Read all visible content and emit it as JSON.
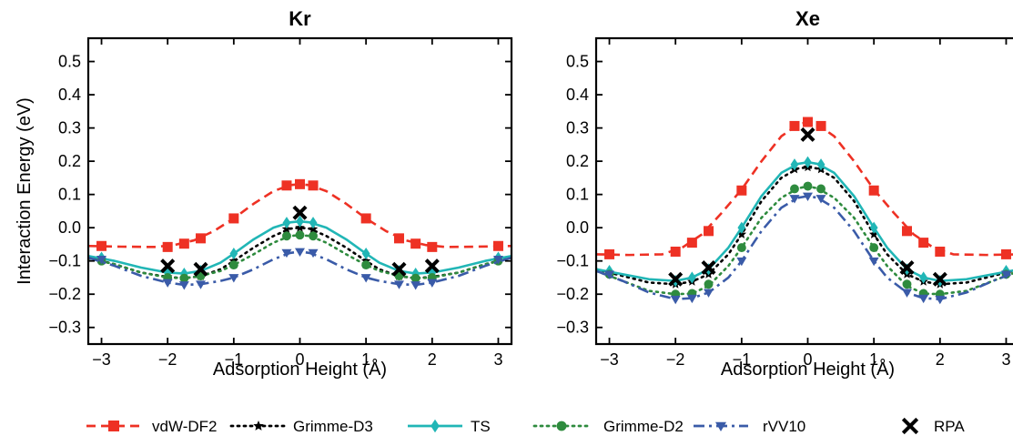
{
  "chart_data": [
    {
      "type": "line",
      "title": "Kr",
      "xlabel": "Adsorption Height (Å)",
      "ylabel": "Interaction Energy (eV)",
      "xlim": [
        -3.2,
        3.2
      ],
      "ylim": [
        -0.35,
        0.57
      ],
      "xticks": [
        "−3",
        "−2",
        "−1",
        "0",
        "1",
        "2",
        "3"
      ],
      "yticks": [
        "0.5",
        "0.4",
        "0.3",
        "0.2",
        "0.1",
        "0.0",
        "−0.1",
        "−0.2",
        "−0.3"
      ],
      "series": [
        {
          "name": "vdW-DF2",
          "curve": {
            "x": [
              -3.2,
              -2.7,
              -2.2,
              -1.9,
              -1.6,
              -1.3,
              -1.0,
              -0.7,
              -0.4,
              -0.15,
              0,
              0.15,
              0.4,
              0.7,
              1.0,
              1.3,
              1.6,
              1.9,
              2.2,
              2.7,
              3.2
            ],
            "y": [
              -0.055,
              -0.057,
              -0.058,
              -0.052,
              -0.038,
              -0.01,
              0.028,
              0.072,
              0.11,
              0.128,
              0.131,
              0.128,
              0.11,
              0.072,
              0.028,
              -0.01,
              -0.038,
              -0.052,
              -0.058,
              -0.057,
              -0.055
            ]
          },
          "points": {
            "x": [
              -3,
              -2,
              -1.75,
              -1.5,
              -1,
              -0.2,
              0,
              0.2,
              1,
              1.5,
              1.75,
              2,
              3
            ],
            "y": [
              -0.055,
              -0.058,
              -0.048,
              -0.032,
              0.028,
              0.127,
              0.131,
              0.127,
              0.028,
              -0.032,
              -0.048,
              -0.058,
              -0.055
            ]
          }
        },
        {
          "name": "Grimme-D3",
          "curve": {
            "x": [
              -3.2,
              -2.8,
              -2.4,
              -2.0,
              -1.75,
              -1.5,
              -1.2,
              -1.0,
              -0.7,
              -0.4,
              -0.15,
              0,
              0.15,
              0.4,
              0.7,
              1.0,
              1.2,
              1.5,
              1.75,
              2.0,
              2.4,
              2.8,
              3.2
            ],
            "y": [
              -0.09,
              -0.11,
              -0.135,
              -0.148,
              -0.152,
              -0.146,
              -0.125,
              -0.1,
              -0.06,
              -0.025,
              -0.003,
              0.0,
              -0.003,
              -0.025,
              -0.06,
              -0.1,
              -0.125,
              -0.146,
              -0.152,
              -0.148,
              -0.135,
              -0.11,
              -0.09
            ]
          },
          "points": {
            "x": [
              -3,
              -2,
              -1.75,
              -1.5,
              -1,
              -0.2,
              0,
              0.2,
              1,
              1.5,
              1.75,
              2,
              3
            ],
            "y": [
              -0.095,
              -0.148,
              -0.152,
              -0.146,
              -0.1,
              -0.004,
              0.0,
              -0.004,
              -0.1,
              -0.146,
              -0.152,
              -0.148,
              -0.095
            ]
          }
        },
        {
          "name": "TS",
          "curve": {
            "x": [
              -3.2,
              -2.8,
              -2.4,
              -2.0,
              -1.75,
              -1.5,
              -1.2,
              -1.0,
              -0.7,
              -0.4,
              -0.15,
              0,
              0.15,
              0.4,
              0.7,
              1.0,
              1.2,
              1.5,
              1.75,
              2.0,
              2.4,
              2.8,
              3.2
            ],
            "y": [
              -0.085,
              -0.1,
              -0.12,
              -0.135,
              -0.138,
              -0.13,
              -0.105,
              -0.078,
              -0.035,
              0.0,
              0.016,
              0.019,
              0.016,
              0.0,
              -0.035,
              -0.078,
              -0.105,
              -0.13,
              -0.138,
              -0.135,
              -0.12,
              -0.1,
              -0.085
            ]
          },
          "points": {
            "x": [
              -3,
              -2,
              -1.75,
              -1.5,
              -1,
              -0.2,
              0,
              0.2,
              1,
              1.5,
              1.75,
              2,
              3
            ],
            "y": [
              -0.09,
              -0.135,
              -0.138,
              -0.13,
              -0.078,
              0.015,
              0.019,
              0.015,
              -0.078,
              -0.13,
              -0.138,
              -0.135,
              -0.09
            ]
          }
        },
        {
          "name": "Grimme-D2",
          "curve": {
            "x": [
              -3.2,
              -2.8,
              -2.4,
              -2.0,
              -1.75,
              -1.5,
              -1.2,
              -1.0,
              -0.7,
              -0.4,
              -0.15,
              0,
              0.15,
              0.4,
              0.7,
              1.0,
              1.2,
              1.5,
              1.75,
              2.0,
              2.4,
              2.8,
              3.2
            ],
            "y": [
              -0.092,
              -0.11,
              -0.135,
              -0.15,
              -0.152,
              -0.145,
              -0.13,
              -0.112,
              -0.08,
              -0.045,
              -0.025,
              -0.022,
              -0.025,
              -0.045,
              -0.08,
              -0.112,
              -0.13,
              -0.145,
              -0.152,
              -0.15,
              -0.135,
              -0.11,
              -0.092
            ]
          },
          "points": {
            "x": [
              -3,
              -2,
              -1.75,
              -1.5,
              -1,
              -0.2,
              0,
              0.2,
              1,
              1.5,
              1.75,
              2,
              3
            ],
            "y": [
              -0.1,
              -0.15,
              -0.152,
              -0.145,
              -0.112,
              -0.025,
              -0.022,
              -0.025,
              -0.112,
              -0.145,
              -0.152,
              -0.15,
              -0.1
            ]
          }
        },
        {
          "name": "rVV10",
          "curve": {
            "x": [
              -3.2,
              -2.8,
              -2.4,
              -2.0,
              -1.75,
              -1.5,
              -1.2,
              -1.0,
              -0.7,
              -0.4,
              -0.15,
              0,
              0.15,
              0.4,
              0.7,
              1.0,
              1.2,
              1.5,
              1.75,
              2.0,
              2.4,
              2.8,
              3.2
            ],
            "y": [
              -0.09,
              -0.115,
              -0.145,
              -0.165,
              -0.172,
              -0.17,
              -0.16,
              -0.15,
              -0.125,
              -0.095,
              -0.076,
              -0.072,
              -0.076,
              -0.095,
              -0.125,
              -0.15,
              -0.16,
              -0.17,
              -0.172,
              -0.165,
              -0.145,
              -0.115,
              -0.09
            ]
          },
          "points": {
            "x": [
              -3,
              -2,
              -1.75,
              -1.5,
              -1,
              -0.2,
              0,
              0.2,
              1,
              1.5,
              1.75,
              2,
              3
            ],
            "y": [
              -0.095,
              -0.165,
              -0.172,
              -0.17,
              -0.15,
              -0.075,
              -0.072,
              -0.075,
              -0.15,
              -0.17,
              -0.172,
              -0.165,
              -0.095
            ]
          }
        },
        {
          "name": "RPA",
          "points": {
            "x": [
              -2,
              -1.5,
              0,
              1.5,
              2
            ],
            "y": [
              -0.115,
              -0.125,
              0.045,
              -0.125,
              -0.115
            ]
          }
        }
      ]
    },
    {
      "type": "line",
      "title": "Xe",
      "xlabel": "Adsorption Height (Å)",
      "ylabel": "",
      "xlim": [
        -3.2,
        3.2
      ],
      "ylim": [
        -0.35,
        0.57
      ],
      "xticks": [
        "−3",
        "−2",
        "−1",
        "0",
        "1",
        "2",
        "3"
      ],
      "yticks": [
        "0.5",
        "0.4",
        "0.3",
        "0.2",
        "0.1",
        "0.0",
        "−0.1",
        "−0.2",
        "−0.3"
      ],
      "series": [
        {
          "name": "vdW-DF2",
          "curve": {
            "x": [
              -3.2,
              -2.7,
              -2.2,
              -1.9,
              -1.6,
              -1.3,
              -1.0,
              -0.7,
              -0.4,
              -0.15,
              0,
              0.15,
              0.4,
              0.7,
              1.0,
              1.3,
              1.6,
              1.9,
              2.2,
              2.7,
              3.2
            ],
            "y": [
              -0.08,
              -0.082,
              -0.08,
              -0.06,
              -0.02,
              0.045,
              0.115,
              0.2,
              0.275,
              0.31,
              0.318,
              0.31,
              0.275,
              0.2,
              0.115,
              0.045,
              -0.02,
              -0.06,
              -0.08,
              -0.082,
              -0.08
            ]
          },
          "points": {
            "x": [
              -3,
              -2,
              -1.75,
              -1.5,
              -1,
              -0.2,
              0,
              0.2,
              1,
              1.5,
              1.75,
              2,
              3
            ],
            "y": [
              -0.08,
              -0.072,
              -0.045,
              -0.01,
              0.112,
              0.306,
              0.318,
              0.306,
              0.112,
              -0.01,
              -0.045,
              -0.072,
              -0.08
            ]
          }
        },
        {
          "name": "Grimme-D3",
          "curve": {
            "x": [
              -3.2,
              -2.8,
              -2.4,
              -2.0,
              -1.75,
              -1.5,
              -1.2,
              -1.0,
              -0.7,
              -0.4,
              -0.15,
              0,
              0.15,
              0.4,
              0.7,
              1.0,
              1.2,
              1.5,
              1.75,
              2.0,
              2.4,
              2.8,
              3.2
            ],
            "y": [
              -0.125,
              -0.145,
              -0.165,
              -0.17,
              -0.162,
              -0.14,
              -0.08,
              -0.02,
              0.08,
              0.15,
              0.178,
              0.182,
              0.178,
              0.15,
              0.08,
              -0.02,
              -0.08,
              -0.14,
              -0.162,
              -0.17,
              -0.165,
              -0.145,
              -0.125
            ]
          },
          "points": {
            "x": [
              -3,
              -2,
              -1.75,
              -1.5,
              -1,
              -0.2,
              0,
              0.2,
              1,
              1.5,
              1.75,
              2,
              3
            ],
            "y": [
              -0.135,
              -0.17,
              -0.162,
              -0.14,
              -0.02,
              0.176,
              0.182,
              0.176,
              -0.02,
              -0.14,
              -0.162,
              -0.17,
              -0.135
            ]
          }
        },
        {
          "name": "TS",
          "curve": {
            "x": [
              -3.2,
              -2.8,
              -2.4,
              -2.0,
              -1.75,
              -1.5,
              -1.2,
              -1.0,
              -0.7,
              -0.4,
              -0.15,
              0,
              0.15,
              0.4,
              0.7,
              1.0,
              1.2,
              1.5,
              1.75,
              2.0,
              2.4,
              2.8,
              3.2
            ],
            "y": [
              -0.125,
              -0.14,
              -0.155,
              -0.16,
              -0.15,
              -0.125,
              -0.06,
              0.0,
              0.095,
              0.165,
              0.192,
              0.197,
              0.192,
              0.165,
              0.095,
              0.0,
              -0.06,
              -0.125,
              -0.15,
              -0.16,
              -0.155,
              -0.14,
              -0.125
            ]
          },
          "points": {
            "x": [
              -3,
              -2,
              -1.75,
              -1.5,
              -1,
              -0.2,
              0,
              0.2,
              1,
              1.5,
              1.75,
              2,
              3
            ],
            "y": [
              -0.13,
              -0.16,
              -0.15,
              -0.125,
              0.0,
              0.19,
              0.197,
              0.19,
              0.0,
              -0.125,
              -0.15,
              -0.16,
              -0.13
            ]
          }
        },
        {
          "name": "Grimme-D2",
          "curve": {
            "x": [
              -3.2,
              -2.8,
              -2.4,
              -2.0,
              -1.75,
              -1.5,
              -1.2,
              -1.0,
              -0.7,
              -0.4,
              -0.15,
              0,
              0.15,
              0.4,
              0.7,
              1.0,
              1.2,
              1.5,
              1.75,
              2.0,
              2.4,
              2.8,
              3.2
            ],
            "y": [
              -0.13,
              -0.16,
              -0.19,
              -0.2,
              -0.198,
              -0.175,
              -0.115,
              -0.06,
              0.03,
              0.09,
              0.118,
              0.125,
              0.118,
              0.09,
              0.03,
              -0.06,
              -0.115,
              -0.175,
              -0.198,
              -0.2,
              -0.19,
              -0.16,
              -0.13
            ]
          },
          "points": {
            "x": [
              -3,
              -2,
              -1.75,
              -1.5,
              -1,
              -0.2,
              0,
              0.2,
              1,
              1.5,
              1.75,
              2,
              3
            ],
            "y": [
              -0.14,
              -0.2,
              -0.198,
              -0.17,
              -0.06,
              0.117,
              0.125,
              0.117,
              -0.06,
              -0.17,
              -0.198,
              -0.2,
              -0.14
            ]
          }
        },
        {
          "name": "rVV10",
          "curve": {
            "x": [
              -3.2,
              -2.8,
              -2.4,
              -2.0,
              -1.75,
              -1.5,
              -1.2,
              -1.0,
              -0.7,
              -0.4,
              -0.15,
              0,
              0.15,
              0.4,
              0.7,
              1.0,
              1.2,
              1.5,
              1.75,
              2.0,
              2.4,
              2.8,
              3.2
            ],
            "y": [
              -0.13,
              -0.16,
              -0.195,
              -0.215,
              -0.212,
              -0.195,
              -0.15,
              -0.1,
              -0.01,
              0.06,
              0.09,
              0.095,
              0.09,
              0.06,
              -0.01,
              -0.1,
              -0.15,
              -0.195,
              -0.212,
              -0.215,
              -0.195,
              -0.16,
              -0.13
            ]
          },
          "points": {
            "x": [
              -3,
              -2,
              -1.75,
              -1.5,
              -1,
              -0.2,
              0,
              0.2,
              1,
              1.5,
              1.75,
              2,
              3
            ],
            "y": [
              -0.14,
              -0.215,
              -0.212,
              -0.195,
              -0.1,
              0.088,
              0.095,
              0.088,
              -0.1,
              -0.195,
              -0.212,
              -0.215,
              -0.14
            ]
          }
        },
        {
          "name": "RPA",
          "points": {
            "x": [
              -2,
              -1.5,
              0,
              1.5,
              2
            ],
            "y": [
              -0.155,
              -0.12,
              0.28,
              -0.12,
              -0.155
            ]
          }
        }
      ]
    }
  ],
  "legend": {
    "placement": "bottom",
    "items": [
      {
        "label": "vdW-DF2",
        "color": "#ee3124",
        "dash": "dashed",
        "marker": "square"
      },
      {
        "label": "Grimme-D3",
        "color": "#000000",
        "dash": "dotted",
        "marker": "star"
      },
      {
        "label": "TS",
        "color": "#21b6b6",
        "dash": "solid",
        "marker": "diamond"
      },
      {
        "label": "Grimme-D2",
        "color": "#2e8b3e",
        "dash": "dotted",
        "marker": "circle"
      },
      {
        "label": "rVV10",
        "color": "#3a5ba8",
        "dash": "dashdot",
        "marker": "triangle-down"
      },
      {
        "label": "RPA",
        "color": "#000000",
        "dash": "none",
        "marker": "x"
      }
    ]
  }
}
